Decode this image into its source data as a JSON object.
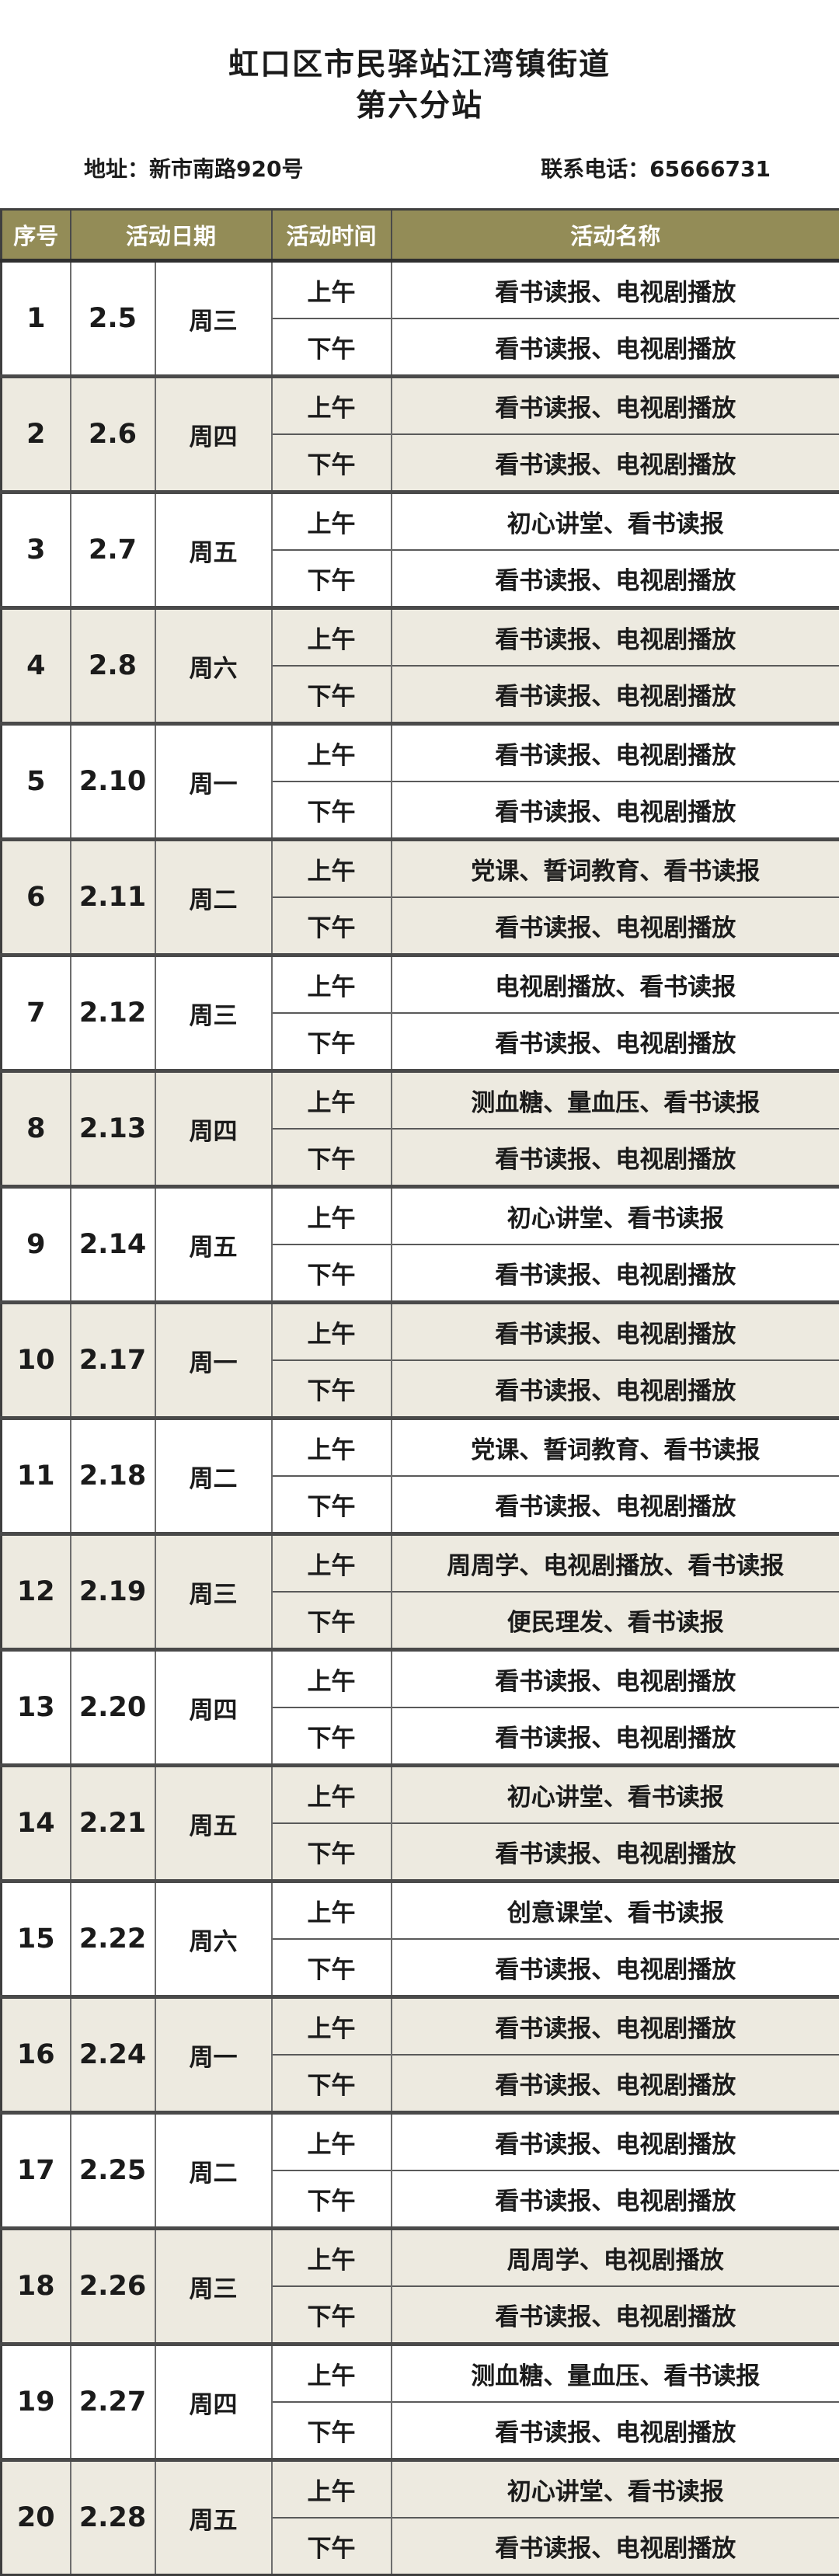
{
  "page": {
    "title_line1": "虹口区市民驿站江湾镇街道",
    "title_line2": "第六分站",
    "address_label": "地址：",
    "address_value": "新市南路920号",
    "phone_label": "联系电话：",
    "phone_value": "65666731"
  },
  "colors": {
    "header_bg": "#938C57",
    "header_text": "#FFFFFF",
    "alt_row_bg": "#EDEAE0",
    "border_dark": "#3F3F3F",
    "text": "#1B1B1B"
  },
  "table": {
    "headers": [
      "序号",
      "活动日期",
      "活动时间",
      "活动名称"
    ],
    "time_labels": {
      "am": "上午",
      "pm": "下午"
    },
    "rows": [
      {
        "no": "1",
        "date": "2.5",
        "weekday": "周三",
        "am_activity": "看书读报、电视剧播放",
        "pm_activity": "看书读报、电视剧播放"
      },
      {
        "no": "2",
        "date": "2.6",
        "weekday": "周四",
        "am_activity": "看书读报、电视剧播放",
        "pm_activity": "看书读报、电视剧播放"
      },
      {
        "no": "3",
        "date": "2.7",
        "weekday": "周五",
        "am_activity": "初心讲堂、看书读报",
        "pm_activity": "看书读报、电视剧播放"
      },
      {
        "no": "4",
        "date": "2.8",
        "weekday": "周六",
        "am_activity": "看书读报、电视剧播放",
        "pm_activity": "看书读报、电视剧播放"
      },
      {
        "no": "5",
        "date": "2.10",
        "weekday": "周一",
        "am_activity": "看书读报、电视剧播放",
        "pm_activity": "看书读报、电视剧播放"
      },
      {
        "no": "6",
        "date": "2.11",
        "weekday": "周二",
        "am_activity": "党课、誓词教育、看书读报",
        "pm_activity": "看书读报、电视剧播放"
      },
      {
        "no": "7",
        "date": "2.12",
        "weekday": "周三",
        "am_activity": "电视剧播放、看书读报",
        "pm_activity": "看书读报、电视剧播放"
      },
      {
        "no": "8",
        "date": "2.13",
        "weekday": "周四",
        "am_activity": "测血糖、量血压、看书读报",
        "pm_activity": "看书读报、电视剧播放"
      },
      {
        "no": "9",
        "date": "2.14",
        "weekday": "周五",
        "am_activity": "初心讲堂、看书读报",
        "pm_activity": "看书读报、电视剧播放"
      },
      {
        "no": "10",
        "date": "2.17",
        "weekday": "周一",
        "am_activity": "看书读报、电视剧播放",
        "pm_activity": "看书读报、电视剧播放"
      },
      {
        "no": "11",
        "date": "2.18",
        "weekday": "周二",
        "am_activity": "党课、誓词教育、看书读报",
        "pm_activity": "看书读报、电视剧播放"
      },
      {
        "no": "12",
        "date": "2.19",
        "weekday": "周三",
        "am_activity": "周周学、电视剧播放、看书读报",
        "pm_activity": "便民理发、看书读报"
      },
      {
        "no": "13",
        "date": "2.20",
        "weekday": "周四",
        "am_activity": "看书读报、电视剧播放",
        "pm_activity": "看书读报、电视剧播放"
      },
      {
        "no": "14",
        "date": "2.21",
        "weekday": "周五",
        "am_activity": "初心讲堂、看书读报",
        "pm_activity": "看书读报、电视剧播放"
      },
      {
        "no": "15",
        "date": "2.22",
        "weekday": "周六",
        "am_activity": "创意课堂、看书读报",
        "pm_activity": "看书读报、电视剧播放"
      },
      {
        "no": "16",
        "date": "2.24",
        "weekday": "周一",
        "am_activity": "看书读报、电视剧播放",
        "pm_activity": "看书读报、电视剧播放"
      },
      {
        "no": "17",
        "date": "2.25",
        "weekday": "周二",
        "am_activity": "看书读报、电视剧播放",
        "pm_activity": "看书读报、电视剧播放"
      },
      {
        "no": "18",
        "date": "2.26",
        "weekday": "周三",
        "am_activity": "周周学、电视剧播放",
        "pm_activity": "看书读报、电视剧播放"
      },
      {
        "no": "19",
        "date": "2.27",
        "weekday": "周四",
        "am_activity": "测血糖、量血压、看书读报",
        "pm_activity": "看书读报、电视剧播放"
      },
      {
        "no": "20",
        "date": "2.28",
        "weekday": "周五",
        "am_activity": "初心讲堂、看书读报",
        "pm_activity": "看书读报、电视剧播放"
      }
    ]
  }
}
